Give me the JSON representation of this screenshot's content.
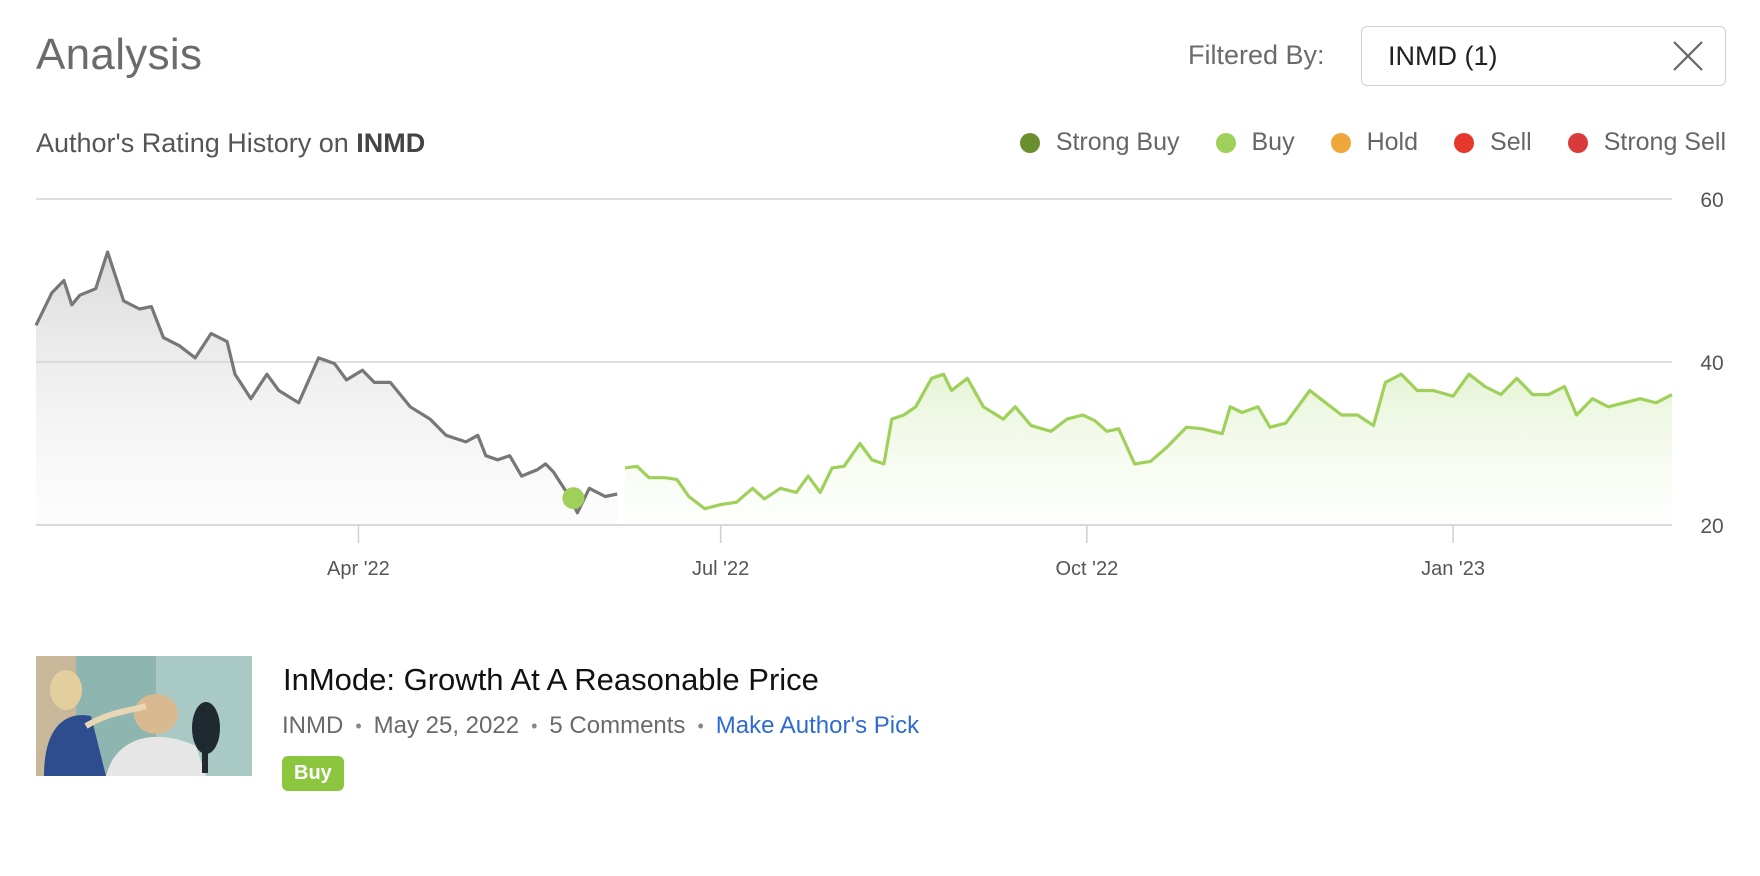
{
  "header": {
    "title": "Analysis",
    "filter_label": "Filtered By:",
    "filter_value": "INMD (1)",
    "clear_icon": "close-icon"
  },
  "rating_history": {
    "prefix": "Author's Rating History on ",
    "ticker": "INMD"
  },
  "legend": [
    {
      "label": "Strong Buy",
      "color": "#6a8f2f"
    },
    {
      "label": "Buy",
      "color": "#9fd05a"
    },
    {
      "label": "Hold",
      "color": "#f0a73a"
    },
    {
      "label": "Sell",
      "color": "#e8372c"
    },
    {
      "label": "Strong Sell",
      "color": "#d93b3b"
    }
  ],
  "chart_data": {
    "type": "line",
    "ylim": [
      20,
      60
    ],
    "y_ticks": [
      "60",
      "40",
      "20"
    ],
    "x_ticks": [
      "Apr '22",
      "Jul '22",
      "Oct '22",
      "Jan '23"
    ],
    "grid": true,
    "rating_marker": {
      "x": "2022-05-25",
      "y": 23.3,
      "rating": "Buy",
      "color": "#9fd05a"
    },
    "series": [
      {
        "color": "#777777",
        "points": [
          [
            "2022-01-10",
            44.5
          ],
          [
            "2022-01-14",
            48.5
          ],
          [
            "2022-01-17",
            50.0
          ],
          [
            "2022-01-19",
            47.0
          ],
          [
            "2022-01-21",
            48.2
          ],
          [
            "2022-01-25",
            49.0
          ],
          [
            "2022-01-28",
            53.5
          ],
          [
            "2022-02-01",
            47.5
          ],
          [
            "2022-02-05",
            46.5
          ],
          [
            "2022-02-08",
            46.8
          ],
          [
            "2022-02-11",
            43.0
          ],
          [
            "2022-02-15",
            42.0
          ],
          [
            "2022-02-19",
            40.5
          ],
          [
            "2022-02-23",
            43.5
          ],
          [
            "2022-02-27",
            42.5
          ],
          [
            "2022-03-01",
            38.5
          ],
          [
            "2022-03-05",
            35.5
          ],
          [
            "2022-03-09",
            38.5
          ],
          [
            "2022-03-12",
            36.5
          ],
          [
            "2022-03-17",
            35.0
          ],
          [
            "2022-03-22",
            40.5
          ],
          [
            "2022-03-26",
            39.8
          ],
          [
            "2022-03-29",
            37.8
          ],
          [
            "2022-04-02",
            39.0
          ],
          [
            "2022-04-05",
            37.5
          ],
          [
            "2022-04-09",
            37.5
          ],
          [
            "2022-04-14",
            34.5
          ],
          [
            "2022-04-19",
            33.0
          ],
          [
            "2022-04-23",
            31.0
          ],
          [
            "2022-04-28",
            30.2
          ],
          [
            "2022-05-01",
            31.0
          ],
          [
            "2022-05-03",
            28.5
          ],
          [
            "2022-05-06",
            28.0
          ],
          [
            "2022-05-09",
            28.5
          ],
          [
            "2022-05-12",
            26.0
          ],
          [
            "2022-05-16",
            26.8
          ],
          [
            "2022-05-18",
            27.5
          ],
          [
            "2022-05-20",
            26.5
          ],
          [
            "2022-05-22",
            25.0
          ],
          [
            "2022-05-24",
            23.5
          ],
          [
            "2022-05-26",
            21.5
          ],
          [
            "2022-05-29",
            24.5
          ],
          [
            "2022-06-02",
            23.5
          ],
          [
            "2022-06-05",
            23.8
          ]
        ]
      },
      {
        "color": "#9fd05a",
        "points": [
          [
            "2022-06-07",
            27.0
          ],
          [
            "2022-06-10",
            27.2
          ],
          [
            "2022-06-13",
            25.8
          ],
          [
            "2022-06-17",
            25.8
          ],
          [
            "2022-06-20",
            25.6
          ],
          [
            "2022-06-23",
            23.5
          ],
          [
            "2022-06-27",
            22.0
          ],
          [
            "2022-07-01",
            22.5
          ],
          [
            "2022-07-05",
            22.8
          ],
          [
            "2022-07-09",
            24.5
          ],
          [
            "2022-07-12",
            23.2
          ],
          [
            "2022-07-16",
            24.5
          ],
          [
            "2022-07-20",
            24.0
          ],
          [
            "2022-07-23",
            26.0
          ],
          [
            "2022-07-26",
            24.0
          ],
          [
            "2022-07-29",
            27.0
          ],
          [
            "2022-08-01",
            27.2
          ],
          [
            "2022-08-05",
            30.0
          ],
          [
            "2022-08-08",
            28.0
          ],
          [
            "2022-08-11",
            27.5
          ],
          [
            "2022-08-13",
            33.0
          ],
          [
            "2022-08-16",
            33.5
          ],
          [
            "2022-08-19",
            34.5
          ],
          [
            "2022-08-23",
            38.0
          ],
          [
            "2022-08-26",
            38.5
          ],
          [
            "2022-08-28",
            36.5
          ],
          [
            "2022-09-01",
            38.0
          ],
          [
            "2022-09-05",
            34.5
          ],
          [
            "2022-09-10",
            33.0
          ],
          [
            "2022-09-13",
            34.5
          ],
          [
            "2022-09-17",
            32.2
          ],
          [
            "2022-09-22",
            31.5
          ],
          [
            "2022-09-26",
            33.0
          ],
          [
            "2022-09-30",
            33.5
          ],
          [
            "2022-10-03",
            32.8
          ],
          [
            "2022-10-06",
            31.5
          ],
          [
            "2022-10-09",
            31.8
          ],
          [
            "2022-10-13",
            27.5
          ],
          [
            "2022-10-17",
            27.8
          ],
          [
            "2022-10-21",
            29.5
          ],
          [
            "2022-10-26",
            32.0
          ],
          [
            "2022-10-30",
            31.8
          ],
          [
            "2022-11-04",
            31.2
          ],
          [
            "2022-11-06",
            34.5
          ],
          [
            "2022-11-09",
            33.8
          ],
          [
            "2022-11-13",
            34.5
          ],
          [
            "2022-11-16",
            32.0
          ],
          [
            "2022-11-20",
            32.5
          ],
          [
            "2022-11-26",
            36.5
          ],
          [
            "2022-11-30",
            35.0
          ],
          [
            "2022-12-04",
            33.5
          ],
          [
            "2022-12-08",
            33.5
          ],
          [
            "2022-12-12",
            32.2
          ],
          [
            "2022-12-15",
            37.5
          ],
          [
            "2022-12-19",
            38.5
          ],
          [
            "2022-12-23",
            36.5
          ],
          [
            "2022-12-27",
            36.5
          ],
          [
            "2023-01-01",
            35.8
          ],
          [
            "2023-01-05",
            38.5
          ],
          [
            "2023-01-09",
            37.0
          ],
          [
            "2023-01-13",
            36.0
          ],
          [
            "2023-01-17",
            38.0
          ],
          [
            "2023-01-21",
            36.0
          ],
          [
            "2023-01-25",
            36.0
          ],
          [
            "2023-01-29",
            37.0
          ],
          [
            "2023-02-01",
            33.5
          ],
          [
            "2023-02-05",
            35.5
          ],
          [
            "2023-02-09",
            34.5
          ],
          [
            "2023-02-13",
            35.0
          ],
          [
            "2023-02-17",
            35.5
          ],
          [
            "2023-02-21",
            35.0
          ],
          [
            "2023-02-25",
            36.0
          ]
        ]
      }
    ]
  },
  "article": {
    "title": "InMode: Growth At A Reasonable Price",
    "ticker": "INMD",
    "date": "May 25, 2022",
    "comments": "5 Comments",
    "pick_link": "Make Author's Pick",
    "rating_badge": "Buy",
    "badge_color": "#8cc63f"
  }
}
